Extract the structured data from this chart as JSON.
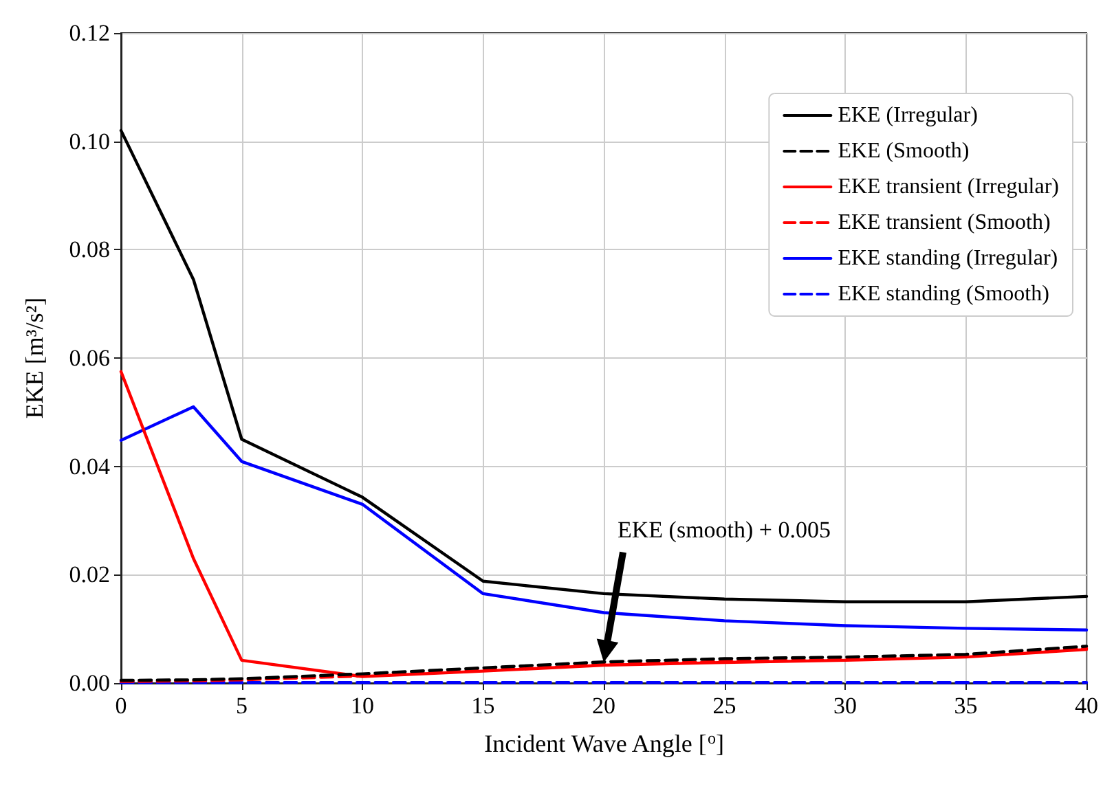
{
  "chart_data": {
    "type": "line",
    "xlabel": "Incident Wave Angle [$^{o}$]",
    "ylabel": "EKE [m³/s²]",
    "x": [
      0,
      3,
      5,
      10,
      15,
      20,
      25,
      30,
      35,
      40
    ],
    "series": [
      {
        "name": "EKE (Irregular)",
        "color": "#000000",
        "line_style": "solid",
        "values": [
          0.102,
          0.0745,
          0.045,
          0.0343,
          0.0188,
          0.0165,
          0.0155,
          0.015,
          0.015,
          0.016
        ]
      },
      {
        "name": "EKE (Smooth)",
        "color": "#000000",
        "line_style": "dashed",
        "values": [
          0.0005,
          0.0006,
          0.0008,
          0.0017,
          0.0028,
          0.0039,
          0.0045,
          0.0048,
          0.0053,
          0.0068
        ]
      },
      {
        "name": "EKE transient (Irregular)",
        "color": "#ff0000",
        "line_style": "solid",
        "values": [
          0.0575,
          0.023,
          0.0042,
          0.0012,
          0.0022,
          0.0033,
          0.0038,
          0.0042,
          0.0048,
          0.0062
        ]
      },
      {
        "name": "EKE transient (Smooth)",
        "color": "#ff0000",
        "line_style": "dashed",
        "values": [
          0.0003,
          0.0004,
          0.0006,
          0.0013,
          0.0023,
          0.0034,
          0.004,
          0.0043,
          0.005,
          0.0064
        ]
      },
      {
        "name": "EKE standing (Irregular)",
        "color": "#0000ff",
        "line_style": "solid",
        "values": [
          0.0448,
          0.051,
          0.0409,
          0.033,
          0.0165,
          0.013,
          0.0115,
          0.0106,
          0.0101,
          0.0098
        ]
      },
      {
        "name": "EKE standing (Smooth)",
        "color": "#0000ff",
        "line_style": "dashed",
        "values": [
          0.0001,
          0.0001,
          0.0001,
          0.0001,
          0.0001,
          0.0001,
          0.0001,
          0.0001,
          0.0001,
          0.0001
        ]
      }
    ],
    "annotations": [
      "EKE (smooth) + 0.005"
    ],
    "xlim": [
      0,
      40
    ],
    "xticks": [
      0,
      5,
      10,
      15,
      20,
      25,
      30,
      35,
      40
    ],
    "ylim": [
      0,
      0.12
    ],
    "yticks": [
      {
        "value": 0,
        "label": "0.00"
      },
      {
        "value": 0.02,
        "label": "0.02"
      },
      {
        "value": 0.04,
        "label": "0.04"
      },
      {
        "value": 0.06,
        "label": "0.06"
      },
      {
        "value": 0.08,
        "label": "0.08"
      },
      {
        "value": 0.1,
        "label": "0.10"
      },
      {
        "value": 0.12,
        "label": "0.12"
      }
    ],
    "grid": true,
    "legend": "top right",
    "marker": "none"
  }
}
